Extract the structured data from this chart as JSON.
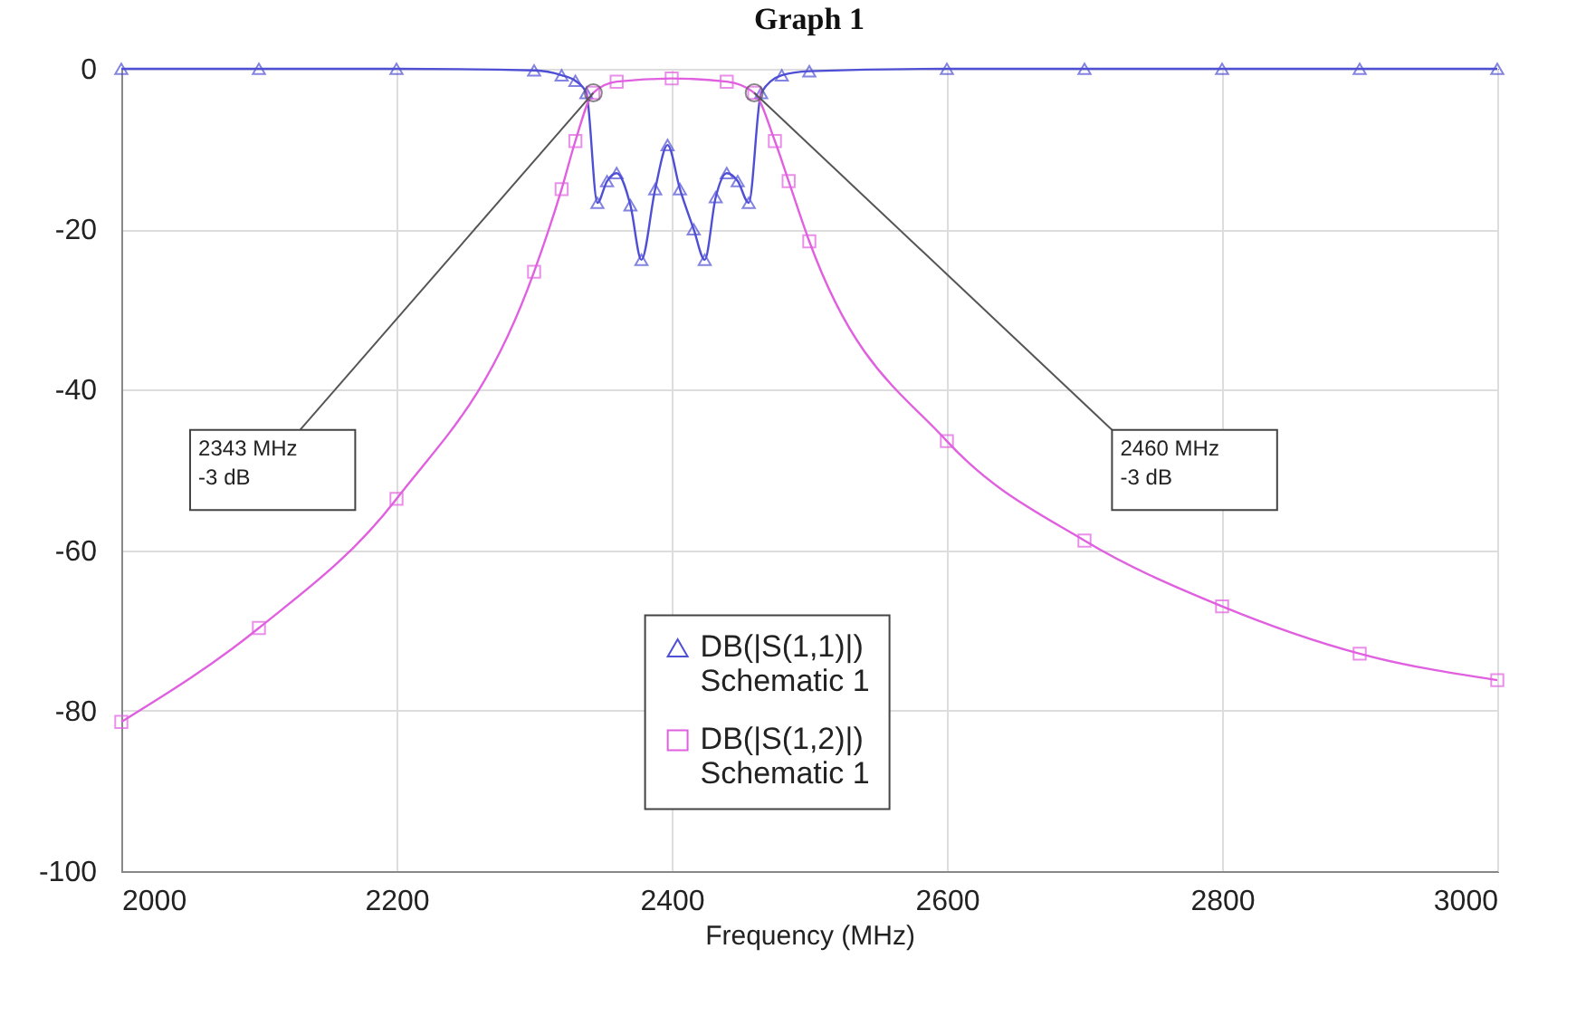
{
  "chart_data": {
    "type": "line",
    "title": "Graph 1",
    "xlabel": "Frequency (MHz)",
    "series": [
      {
        "name": "DB(|S(1,1)|)\nSchematic 1",
        "color": "#4f4fd6",
        "marker": "triangle",
        "x": [
          2000,
          2100,
          2200,
          2300,
          2320,
          2330,
          2338,
          2346,
          2353,
          2360,
          2370,
          2378,
          2388,
          2397,
          2406,
          2416,
          2424,
          2432,
          2440,
          2448,
          2456,
          2465,
          2480,
          2500,
          2600,
          2700,
          2800,
          2900,
          3000
        ],
        "values": [
          0,
          0,
          0,
          -0.2,
          -0.8,
          -1.5,
          -3,
          -16.7,
          -14,
          -13,
          -17,
          -23.8,
          -15,
          -9.5,
          -15,
          -20,
          -23.8,
          -16,
          -13,
          -14,
          -16.7,
          -3,
          -0.8,
          -0.3,
          0,
          0,
          0,
          0,
          0
        ]
      },
      {
        "name": "DB(|S(1,2)|)\nSchematic 1",
        "color": "#e060e0",
        "marker": "square",
        "x": [
          2000,
          2100,
          2200,
          2300,
          2320,
          2330,
          2343,
          2360,
          2400,
          2440,
          2460,
          2475,
          2485,
          2500,
          2600,
          2700,
          2800,
          2900,
          3000
        ],
        "values": [
          -81.4,
          -69.7,
          -53.6,
          -25.3,
          -15,
          -9,
          -3,
          -1.6,
          -1.2,
          -1.6,
          -3,
          -9,
          -14,
          -21.5,
          -46.4,
          -58.8,
          -67,
          -72.9,
          -76.2
        ]
      }
    ],
    "xlim": [
      2000,
      3000
    ],
    "xticks": [
      {
        "value": 2000,
        "label": "2000"
      },
      {
        "value": 2200,
        "label": "2200"
      },
      {
        "value": 2400,
        "label": "2400"
      },
      {
        "value": 2600,
        "label": "2600"
      },
      {
        "value": 2800,
        "label": "2800"
      },
      {
        "value": 3000,
        "label": "3000"
      }
    ],
    "ylim": [
      -100,
      0
    ],
    "yticks": [
      -100,
      -80,
      -60,
      -40,
      -20,
      0
    ],
    "grid": true,
    "legend": "bottom",
    "annotations": [
      {
        "text": "2343 MHz\n-3 dB",
        "x": 2343,
        "y": -3
      },
      {
        "text": "2460 MHz\n-3 dB",
        "x": 2460,
        "y": -3
      }
    ]
  }
}
